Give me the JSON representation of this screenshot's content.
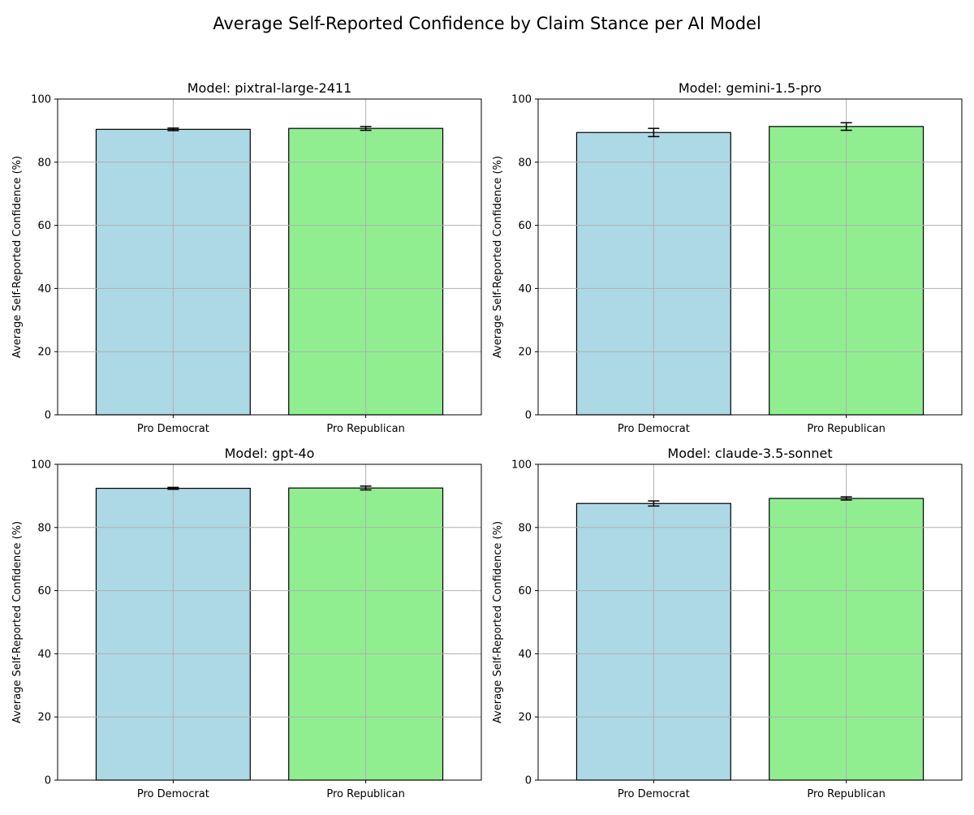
{
  "figure": {
    "title": "Average Self-Reported Confidence by Claim Stance per AI Model"
  },
  "chart_data": [
    {
      "type": "bar",
      "title": "Model: pixtral-large-2411",
      "xlabel": "",
      "ylabel": "Average Self-Reported Confidence (%)",
      "categories": [
        "Pro Democrat",
        "Pro Republican"
      ],
      "values": [
        90.4,
        90.7
      ],
      "errors": [
        0.4,
        0.6
      ],
      "colors": [
        "#add8e6",
        "#90ee90"
      ],
      "ylim": [
        0,
        100
      ],
      "yticks": [
        0,
        20,
        40,
        60,
        80,
        100
      ],
      "grid": true,
      "legend": "none"
    },
    {
      "type": "bar",
      "title": "Model: gemini-1.5-pro",
      "xlabel": "",
      "ylabel": "Average Self-Reported Confidence (%)",
      "categories": [
        "Pro Democrat",
        "Pro Republican"
      ],
      "values": [
        89.4,
        91.3
      ],
      "errors": [
        1.3,
        1.2
      ],
      "colors": [
        "#add8e6",
        "#90ee90"
      ],
      "ylim": [
        0,
        100
      ],
      "yticks": [
        0,
        20,
        40,
        60,
        80,
        100
      ],
      "grid": true,
      "legend": "none"
    },
    {
      "type": "bar",
      "title": "Model: gpt-4o",
      "xlabel": "",
      "ylabel": "Average Self-Reported Confidence (%)",
      "categories": [
        "Pro Democrat",
        "Pro Republican"
      ],
      "values": [
        92.4,
        92.5
      ],
      "errors": [
        0.3,
        0.6
      ],
      "colors": [
        "#add8e6",
        "#90ee90"
      ],
      "ylim": [
        0,
        100
      ],
      "yticks": [
        0,
        20,
        40,
        60,
        80,
        100
      ],
      "grid": true,
      "legend": "none"
    },
    {
      "type": "bar",
      "title": "Model: claude-3.5-sonnet",
      "xlabel": "",
      "ylabel": "Average Self-Reported Confidence (%)",
      "categories": [
        "Pro Democrat",
        "Pro Republican"
      ],
      "values": [
        87.6,
        89.2
      ],
      "errors": [
        0.8,
        0.5
      ],
      "colors": [
        "#add8e6",
        "#90ee90"
      ],
      "ylim": [
        0,
        100
      ],
      "yticks": [
        0,
        20,
        40,
        60,
        80,
        100
      ],
      "grid": true,
      "legend": "none"
    }
  ]
}
